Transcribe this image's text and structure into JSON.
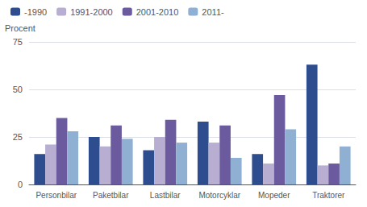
{
  "chart_data": {
    "type": "bar",
    "ylabel": "Procent",
    "categories": [
      "Personbilar",
      "Paketbilar",
      "Lastbilar",
      "Motorcyklar",
      "Mopeder",
      "Traktorer"
    ],
    "series": [
      {
        "name": "-1990",
        "color": "#2e4d8e",
        "values": [
          16,
          25,
          18,
          33,
          16,
          63
        ]
      },
      {
        "name": "1991-2000",
        "color": "#b8aed2",
        "values": [
          21,
          20,
          25,
          22,
          11,
          10
        ]
      },
      {
        "name": "2001-2010",
        "color": "#6b5b9e",
        "values": [
          35,
          31,
          34,
          31,
          47,
          11
        ]
      },
      {
        "name": "2011-",
        "color": "#8fb0d3",
        "values": [
          28,
          24,
          22,
          14,
          29,
          20
        ]
      }
    ],
    "ylim": [
      0,
      75
    ],
    "yticks": [
      0,
      25,
      50,
      75
    ],
    "grid": true,
    "legend": "top-left"
  }
}
